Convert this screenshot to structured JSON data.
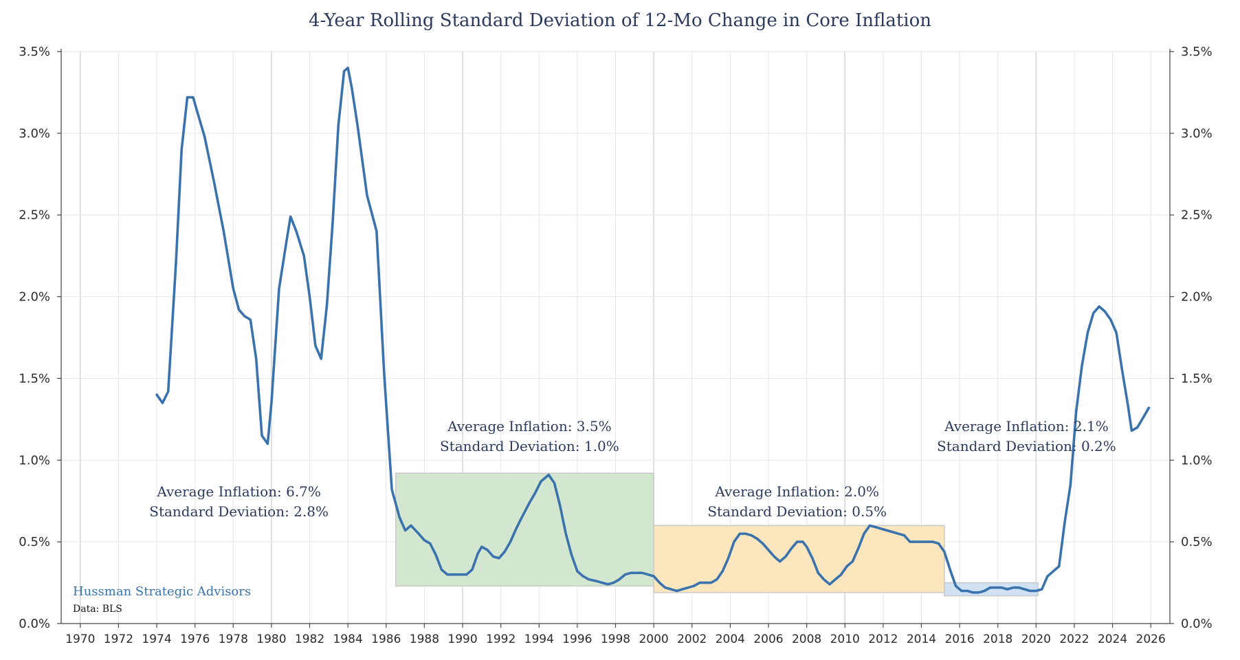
{
  "chart_data": {
    "type": "line",
    "title": "4-Year Rolling Standard Deviation of 12-Mo Change in Core Inflation",
    "xlabel": "",
    "ylabel": "",
    "xlim": [
      1969,
      2027
    ],
    "ylim": [
      0,
      3.5
    ],
    "x_ticks": [
      "1970",
      "1972",
      "1974",
      "1976",
      "1978",
      "1980",
      "1982",
      "1984",
      "1986",
      "1988",
      "1990",
      "1992",
      "1994",
      "1996",
      "1998",
      "2000",
      "2002",
      "2004",
      "2006",
      "2008",
      "2010",
      "2012",
      "2014",
      "2016",
      "2018",
      "2020",
      "2022",
      "2024",
      "2026"
    ],
    "y_ticks": [
      "0.0%",
      "0.5%",
      "1.0%",
      "1.5%",
      "2.0%",
      "2.5%",
      "3.0%",
      "3.5%"
    ],
    "y_ticks_right": [
      "0.0%",
      "0.5%",
      "1.0%",
      "1.5%",
      "2.0%",
      "2.5%",
      "3.0%",
      "3.5%"
    ],
    "grid": true,
    "series": [
      {
        "color": "#3a72ad",
        "x": [
          1974.0,
          1974.3,
          1974.6,
          1975.0,
          1975.3,
          1975.6,
          1975.9,
          1976.2,
          1976.5,
          1977.0,
          1977.5,
          1978.0,
          1978.3,
          1978.6,
          1978.9,
          1979.2,
          1979.5,
          1979.8,
          1980.0,
          1980.4,
          1980.8,
          1981.0,
          1981.3,
          1981.7,
          1982.0,
          1982.3,
          1982.6,
          1982.9,
          1983.2,
          1983.5,
          1983.8,
          1984.0,
          1984.2,
          1984.5,
          1985.0,
          1985.5,
          1985.9,
          1986.3,
          1986.7,
          1987.0,
          1987.3,
          1987.7,
          1988.0,
          1988.3,
          1988.6,
          1988.9,
          1989.2,
          1989.5,
          1989.8,
          1990.2,
          1990.5,
          1990.8,
          1991.0,
          1991.3,
          1991.6,
          1991.9,
          1992.2,
          1992.5,
          1992.8,
          1993.1,
          1993.5,
          1993.8,
          1994.1,
          1994.5,
          1994.8,
          1995.1,
          1995.4,
          1995.7,
          1996.0,
          1996.3,
          1996.6,
          1997.0,
          1997.3,
          1997.6,
          1997.9,
          1998.2,
          1998.5,
          1998.8,
          1999.1,
          1999.4,
          1999.7,
          2000.0,
          2000.3,
          2000.6,
          2000.9,
          2001.2,
          2001.5,
          2001.8,
          2002.1,
          2002.4,
          2002.7,
          2003.0,
          2003.3,
          2003.6,
          2003.9,
          2004.2,
          2004.5,
          2004.8,
          2005.1,
          2005.4,
          2005.7,
          2006.0,
          2006.3,
          2006.6,
          2006.9,
          2007.2,
          2007.5,
          2007.8,
          2008.0,
          2008.3,
          2008.6,
          2008.9,
          2009.2,
          2009.5,
          2009.8,
          2010.1,
          2010.4,
          2010.7,
          2011.0,
          2011.3,
          2011.6,
          2011.9,
          2012.2,
          2012.5,
          2012.8,
          2013.1,
          2013.4,
          2013.7,
          2014.0,
          2014.3,
          2014.6,
          2014.9,
          2015.2,
          2015.5,
          2015.8,
          2016.1,
          2016.4,
          2016.7,
          2017.0,
          2017.3,
          2017.6,
          2017.9,
          2018.2,
          2018.5,
          2018.8,
          2019.1,
          2019.4,
          2019.7,
          2020.0,
          2020.3,
          2020.6,
          2020.9,
          2021.2,
          2021.5,
          2021.8,
          2022.1,
          2022.4,
          2022.7,
          2023.0,
          2023.3,
          2023.6,
          2023.9,
          2024.2,
          2024.5,
          2024.8,
          2025.0,
          2025.3,
          2025.6,
          2025.9
        ],
        "y": [
          1.4,
          1.35,
          1.42,
          2.2,
          2.9,
          3.22,
          3.22,
          3.1,
          2.98,
          2.7,
          2.4,
          2.05,
          1.92,
          1.88,
          1.86,
          1.62,
          1.15,
          1.1,
          1.35,
          2.05,
          2.35,
          2.49,
          2.4,
          2.25,
          2.0,
          1.7,
          1.62,
          1.95,
          2.45,
          3.05,
          3.38,
          3.4,
          3.28,
          3.05,
          2.62,
          2.4,
          1.52,
          0.82,
          0.65,
          0.57,
          0.6,
          0.55,
          0.51,
          0.49,
          0.42,
          0.33,
          0.3,
          0.3,
          0.3,
          0.3,
          0.33,
          0.43,
          0.47,
          0.45,
          0.41,
          0.4,
          0.44,
          0.5,
          0.58,
          0.65,
          0.74,
          0.8,
          0.87,
          0.91,
          0.86,
          0.72,
          0.55,
          0.42,
          0.32,
          0.29,
          0.27,
          0.26,
          0.25,
          0.24,
          0.25,
          0.27,
          0.3,
          0.31,
          0.31,
          0.31,
          0.3,
          0.29,
          0.25,
          0.22,
          0.21,
          0.2,
          0.21,
          0.22,
          0.23,
          0.25,
          0.25,
          0.25,
          0.27,
          0.32,
          0.4,
          0.5,
          0.55,
          0.55,
          0.54,
          0.52,
          0.49,
          0.45,
          0.41,
          0.38,
          0.41,
          0.46,
          0.5,
          0.5,
          0.47,
          0.4,
          0.31,
          0.27,
          0.24,
          0.27,
          0.3,
          0.35,
          0.38,
          0.46,
          0.55,
          0.6,
          0.59,
          0.58,
          0.57,
          0.56,
          0.55,
          0.54,
          0.5,
          0.5,
          0.5,
          0.5,
          0.5,
          0.49,
          0.44,
          0.33,
          0.23,
          0.2,
          0.2,
          0.19,
          0.19,
          0.2,
          0.22,
          0.22,
          0.22,
          0.21,
          0.22,
          0.22,
          0.21,
          0.2,
          0.2,
          0.21,
          0.29,
          0.32,
          0.35,
          0.62,
          0.85,
          1.3,
          1.58,
          1.78,
          1.9,
          1.94,
          1.91,
          1.86,
          1.78,
          1.55,
          1.34,
          1.18,
          1.2,
          1.26,
          1.32
        ]
      }
    ],
    "shaded_regions": [
      {
        "x0": 1986.5,
        "x1": 2000.0,
        "y0": 0.23,
        "y1": 0.92,
        "fill": "#d3e6cf"
      },
      {
        "x0": 2000.0,
        "x1": 2015.2,
        "y0": 0.19,
        "y1": 0.6,
        "fill": "#fbe6bd"
      },
      {
        "x0": 2015.2,
        "x1": 2020.1,
        "y0": 0.17,
        "y1": 0.25,
        "fill": "#cfe1f3"
      }
    ],
    "annotations": [
      {
        "line1": "Average Inflation: 6.7%",
        "line2": "Standard Deviation: 2.8%",
        "x": 1978.3,
        "y": 0.72
      },
      {
        "line1": "Average Inflation: 3.5%",
        "line2": "Standard Deviation: 1.0%",
        "x": 1993.5,
        "y": 1.12
      },
      {
        "line1": "Average Inflation: 2.0%",
        "line2": "Standard Deviation: 0.5%",
        "x": 2007.5,
        "y": 0.72
      },
      {
        "line1": "Average Inflation: 2.1%",
        "line2": "Standard Deviation: 0.2%",
        "x": 2019.5,
        "y": 1.12
      }
    ],
    "brand": "Hussman Strategic Advisors",
    "source": "Data: BLS"
  }
}
